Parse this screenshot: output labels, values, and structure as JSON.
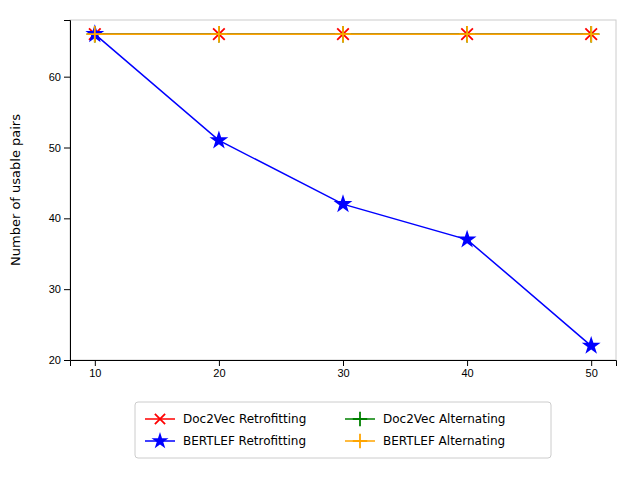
{
  "chart_data": {
    "type": "line",
    "ylabel": "Number of usable pairs",
    "x": [
      10,
      20,
      30,
      40,
      50
    ],
    "xlim": [
      8,
      52
    ],
    "xticks": [
      10,
      20,
      30,
      40,
      50
    ],
    "ylim": [
      20,
      68
    ],
    "yticks": [
      20,
      30,
      40,
      50,
      60
    ],
    "grid": false,
    "legend": "bottom",
    "series": [
      {
        "name": "Doc2Vec Retrofitting",
        "color": "red",
        "marker": "x",
        "values": [
          66,
          66,
          66,
          66,
          66
        ]
      },
      {
        "name": "Doc2Vec Alternating",
        "color": "green",
        "marker": "+",
        "values": [
          66,
          66,
          66,
          66,
          66
        ]
      },
      {
        "name": "BERTLEF Retrofitting",
        "color": "blue",
        "marker": "*",
        "values": [
          66,
          51,
          42,
          37,
          22
        ]
      },
      {
        "name": "BERTLEF Alternating",
        "color": "orange",
        "marker": "+",
        "values": [
          66,
          66,
          66,
          66,
          66
        ]
      }
    ]
  }
}
